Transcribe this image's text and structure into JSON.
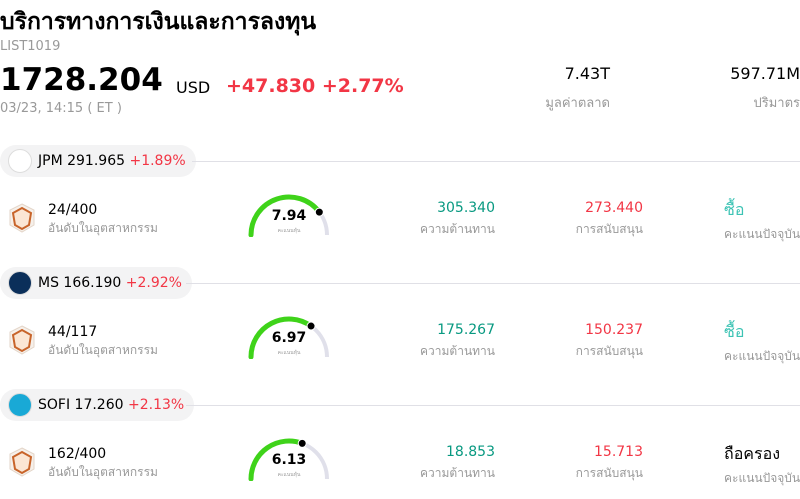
{
  "header": {
    "title": "บริการทางการเงินและการลงทุน",
    "code": "LIST1019",
    "price": "1728.204",
    "currency": "USD",
    "change": "+47.830 +2.77%",
    "time": "03/23, 14:15  ( ET )",
    "stats": [
      {
        "value": "7.43T",
        "label": "มูลค่าตลาด"
      },
      {
        "value": "597.71M",
        "label": "ปริมาตร"
      }
    ]
  },
  "colors": {
    "up": "#f23645",
    "resistance": "#089981",
    "buy": "#3cc3b4",
    "gauge": "#3fd31a"
  },
  "stocks": [
    {
      "ticker": "JPM",
      "price": "291.965",
      "change": "+1.89%",
      "logo_bg": "#ffffff",
      "logo_text": "JPMorgan Chase & Co.",
      "rank": "24/400",
      "rank_label": "อันดับในอุตสาหกรรม",
      "score": 7.94,
      "score_text": "7.94",
      "score_label": "คะแนนหุ้น",
      "resistance": "305.340",
      "resistance_label": "ความต้านทาน",
      "support": "273.440",
      "support_label": "การสนับสนุน",
      "rating": "ซื้อ",
      "rating_type": "buy",
      "rating_label": "คะแนนปัจจุบัน"
    },
    {
      "ticker": "MS",
      "price": "166.190",
      "change": "+2.92%",
      "logo_bg": "#0b2f5a",
      "logo_text": "Morgan Stanley",
      "rank": "44/117",
      "rank_label": "อันดับในอุตสาหกรรม",
      "score": 6.97,
      "score_text": "6.97",
      "score_label": "คะแนนหุ้น",
      "resistance": "175.267",
      "resistance_label": "ความต้านทาน",
      "support": "150.237",
      "support_label": "การสนับสนุน",
      "rating": "ซื้อ",
      "rating_type": "buy",
      "rating_label": "คะแนนปัจจุบัน"
    },
    {
      "ticker": "SOFI",
      "price": "17.260",
      "change": "+2.13%",
      "logo_bg": "#19a9d6",
      "logo_text": "SoFi",
      "rank": "162/400",
      "rank_label": "อันดับในอุตสาหกรรม",
      "score": 6.13,
      "score_text": "6.13",
      "score_label": "คะแนนหุ้น",
      "resistance": "18.853",
      "resistance_label": "ความต้านทาน",
      "support": "15.713",
      "support_label": "การสนับสนุน",
      "rating": "ถือครอง",
      "rating_type": "hold",
      "rating_label": "คะแนนปัจจุบัน"
    }
  ]
}
